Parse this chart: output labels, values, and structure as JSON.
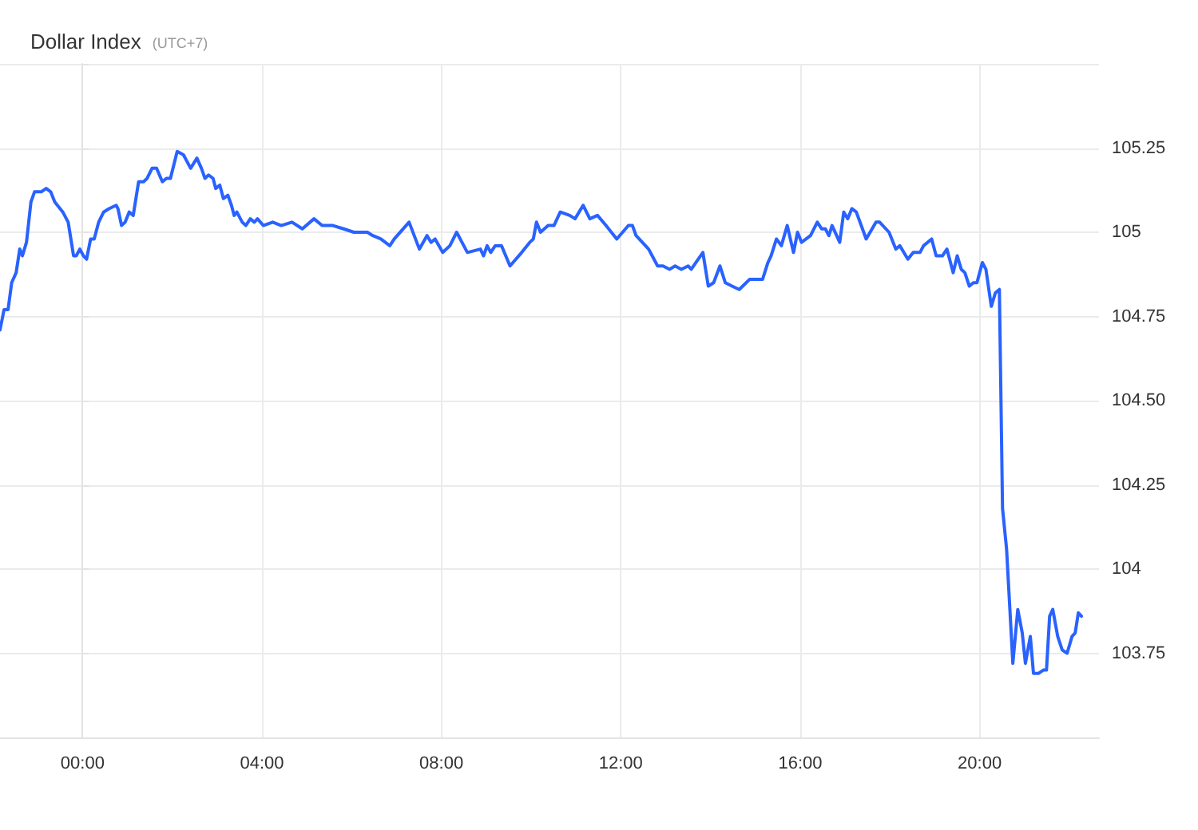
{
  "chart_data": {
    "type": "line",
    "title": "Dollar Index",
    "subtitle": "(UTC+7)",
    "color": "#2962ff",
    "line_style": "solid",
    "grid": true,
    "x": [
      -1.84,
      -1.75,
      -1.66,
      -1.58,
      -1.48,
      -1.4,
      -1.34,
      -1.25,
      -1.15,
      -1.07,
      -0.92,
      -0.81,
      -0.71,
      -0.62,
      -0.44,
      -0.32,
      -0.26,
      -0.2,
      -0.14,
      -0.06,
      0.02,
      0.09,
      0.18,
      0.26,
      0.36,
      0.47,
      0.59,
      0.75,
      0.79,
      0.87,
      0.95,
      1.04,
      1.13,
      1.25,
      1.36,
      1.44,
      1.55,
      1.65,
      1.78,
      1.87,
      1.96,
      2.11,
      2.25,
      2.41,
      2.55,
      2.65,
      2.73,
      2.81,
      2.91,
      2.97,
      3.06,
      3.14,
      3.24,
      3.32,
      3.38,
      3.44,
      3.56,
      3.64,
      3.74,
      3.83,
      3.9,
      4.03,
      4.24,
      4.43,
      4.67,
      4.9,
      5.16,
      5.34,
      5.58,
      5.82,
      6.05,
      6.35,
      6.47,
      6.65,
      6.85,
      6.95,
      7.28,
      7.51,
      7.68,
      7.77,
      7.86,
      8.03,
      8.19,
      8.34,
      8.58,
      8.87,
      8.94,
      9.02,
      9.1,
      9.2,
      9.34,
      9.53,
      9.79,
      9.97,
      10.05,
      10.12,
      10.21,
      10.38,
      10.51,
      10.65,
      10.86,
      10.98,
      11.16,
      11.31,
      11.48,
      11.67,
      11.91,
      12.17,
      12.26,
      12.34,
      12.62,
      12.82,
      12.94,
      13.09,
      13.21,
      13.35,
      13.5,
      13.57,
      13.83,
      13.95,
      14.07,
      14.21,
      14.33,
      14.48,
      14.64,
      14.87,
      15.16,
      15.28,
      15.35,
      15.47,
      15.58,
      15.71,
      15.85,
      15.94,
      16.03,
      16.23,
      16.38,
      16.48,
      16.56,
      16.64,
      16.71,
      16.88,
      16.97,
      17.06,
      17.15,
      17.25,
      17.36,
      17.47,
      17.69,
      17.77,
      17.98,
      18.13,
      18.22,
      18.4,
      18.52,
      18.67,
      18.75,
      18.93,
      19.03,
      19.17,
      19.27,
      19.41,
      19.5,
      19.59,
      19.67,
      19.77,
      19.86,
      19.94,
      20.06,
      20.14,
      20.26,
      20.35,
      20.44,
      20.51,
      20.6,
      20.74,
      20.85,
      20.95,
      21.02,
      21.13,
      21.2,
      21.31,
      21.42,
      21.49,
      21.56,
      21.63,
      21.74,
      21.84,
      21.95,
      22.06,
      22.13,
      22.2,
      22.27
    ],
    "values": [
      104.71,
      104.77,
      104.77,
      104.85,
      104.88,
      104.95,
      104.93,
      104.97,
      105.09,
      105.12,
      105.12,
      105.13,
      105.12,
      105.09,
      105.06,
      105.03,
      104.98,
      104.93,
      104.93,
      104.95,
      104.93,
      104.92,
      104.98,
      104.98,
      105.03,
      105.06,
      105.07,
      105.08,
      105.07,
      105.02,
      105.03,
      105.06,
      105.05,
      105.15,
      105.15,
      105.16,
      105.19,
      105.19,
      105.15,
      105.16,
      105.16,
      105.24,
      105.23,
      105.19,
      105.22,
      105.19,
      105.16,
      105.17,
      105.16,
      105.13,
      105.14,
      105.1,
      105.11,
      105.08,
      105.05,
      105.06,
      105.03,
      105.02,
      105.04,
      105.03,
      105.04,
      105.02,
      105.03,
      105.02,
      105.03,
      105.01,
      105.04,
      105.02,
      105.02,
      105.01,
      105.0,
      105.0,
      104.99,
      104.98,
      104.96,
      104.98,
      105.03,
      104.95,
      104.99,
      104.97,
      104.98,
      104.94,
      104.96,
      105.0,
      104.94,
      104.95,
      104.93,
      104.96,
      104.94,
      104.96,
      104.96,
      104.9,
      104.94,
      104.97,
      104.98,
      105.03,
      105.0,
      105.02,
      105.02,
      105.06,
      105.05,
      105.04,
      105.08,
      105.04,
      105.05,
      105.02,
      104.98,
      105.02,
      105.02,
      104.99,
      104.95,
      104.9,
      104.9,
      104.89,
      104.9,
      104.89,
      104.9,
      104.89,
      104.94,
      104.84,
      104.85,
      104.9,
      104.85,
      104.84,
      104.83,
      104.86,
      104.86,
      104.91,
      104.93,
      104.98,
      104.96,
      105.02,
      104.94,
      105.0,
      104.97,
      104.99,
      105.03,
      105.01,
      105.01,
      104.99,
      105.02,
      104.97,
      105.06,
      105.04,
      105.07,
      105.06,
      105.02,
      104.98,
      105.03,
      105.03,
      105.0,
      104.95,
      104.96,
      104.92,
      104.94,
      104.94,
      104.96,
      104.98,
      104.93,
      104.93,
      104.95,
      104.88,
      104.93,
      104.89,
      104.88,
      104.84,
      104.85,
      104.85,
      104.91,
      104.89,
      104.78,
      104.82,
      104.83,
      104.18,
      104.06,
      103.72,
      103.88,
      103.81,
      103.72,
      103.8,
      103.69,
      103.69,
      103.7,
      103.7,
      103.86,
      103.88,
      103.8,
      103.76,
      103.75,
      103.8,
      103.81,
      103.87,
      103.86
    ],
    "xlim": [
      -1.84,
      22.66
    ],
    "xticks": [
      {
        "value": 0,
        "label": "00:00"
      },
      {
        "value": 4,
        "label": "04:00"
      },
      {
        "value": 8,
        "label": "08:00"
      },
      {
        "value": 12,
        "label": "12:00"
      },
      {
        "value": 16,
        "label": "16:00"
      },
      {
        "value": 20,
        "label": "20:00"
      }
    ],
    "ylim": [
      103.5,
      105.5
    ],
    "yticks": [
      103.75,
      104,
      104.25,
      {
        "value": 104.5,
        "label": "104.50"
      },
      104.75,
      105,
      105.25,
      {
        "value": 105.5,
        "label": null
      }
    ]
  }
}
